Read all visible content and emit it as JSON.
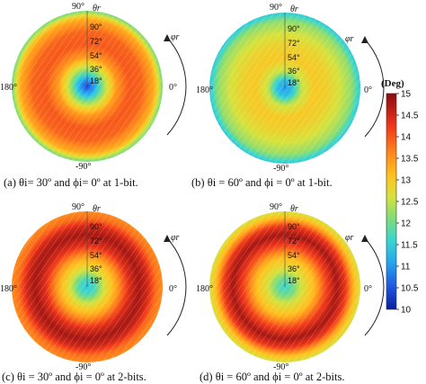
{
  "chart_data": {
    "type": "heatmap",
    "projection": "polar",
    "colorbar": {
      "title": "(Deg)",
      "min": 10,
      "max": 15,
      "ticks": [
        "15",
        "14.5",
        "14",
        "13.5",
        "13",
        "12.5",
        "12",
        "11.5",
        "11",
        "10.5",
        "10"
      ]
    },
    "panels": [
      {
        "caption": "(a) θi= 30º and ϕi= 0º at 1-bit.",
        "radial_ticks": [
          "90°",
          "72°",
          "54°",
          "36°",
          "18°"
        ],
        "angle_labels": [
          "90°",
          "180°",
          "0°",
          "-90°"
        ],
        "radial_axis": "θr",
        "angular_axis": "φr",
        "radial_profile": [
          [
            0,
            10.4
          ],
          [
            10,
            11.2
          ],
          [
            20,
            12.3
          ],
          [
            35,
            13.5
          ],
          [
            50,
            14.0
          ],
          [
            65,
            13.9
          ],
          [
            80,
            13.3
          ],
          [
            90,
            12.0
          ]
        ]
      },
      {
        "caption": "(b) θi = 60º and ϕi = 0º at 1-bit.",
        "radial_ticks": [
          "90°",
          "72°",
          "54°",
          "36°",
          "18°"
        ],
        "angle_labels": [
          "90°",
          "180°",
          "0°",
          "-90°"
        ],
        "radial_axis": "θr",
        "angular_axis": "φr",
        "radial_profile": [
          [
            0,
            11.0
          ],
          [
            10,
            11.4
          ],
          [
            20,
            12.5
          ],
          [
            35,
            13.0
          ],
          [
            50,
            12.9
          ],
          [
            65,
            12.6
          ],
          [
            80,
            12.2
          ],
          [
            90,
            11.4
          ]
        ]
      },
      {
        "caption": "(c) θi = 30º and ϕi = 0º at 2-bits.",
        "radial_ticks": [
          "90°",
          "72°",
          "54°",
          "36°",
          "18°"
        ],
        "angle_labels": [
          "90°",
          "180°",
          "0°",
          "-90°"
        ],
        "radial_axis": "θr",
        "angular_axis": "φr",
        "radial_profile": [
          [
            0,
            11.4
          ],
          [
            10,
            11.8
          ],
          [
            20,
            12.6
          ],
          [
            35,
            13.4
          ],
          [
            50,
            14.4
          ],
          [
            62,
            14.8
          ],
          [
            72,
            14.5
          ],
          [
            82,
            13.8
          ],
          [
            90,
            13.6
          ]
        ]
      },
      {
        "caption": "(d) θi = 60º and ϕi = 0º at 2-bits.",
        "radial_ticks": [
          "90°",
          "72°",
          "54°",
          "36°",
          "18°"
        ],
        "angle_labels": [
          "90°",
          "180°",
          "0°",
          "-90°"
        ],
        "radial_axis": "θr",
        "angular_axis": "φr",
        "radial_profile": [
          [
            0,
            11.6
          ],
          [
            10,
            12.0
          ],
          [
            20,
            12.6
          ],
          [
            35,
            13.2
          ],
          [
            50,
            14.2
          ],
          [
            62,
            14.8
          ],
          [
            72,
            14.3
          ],
          [
            82,
            13.2
          ],
          [
            90,
            12.6
          ]
        ]
      }
    ]
  }
}
